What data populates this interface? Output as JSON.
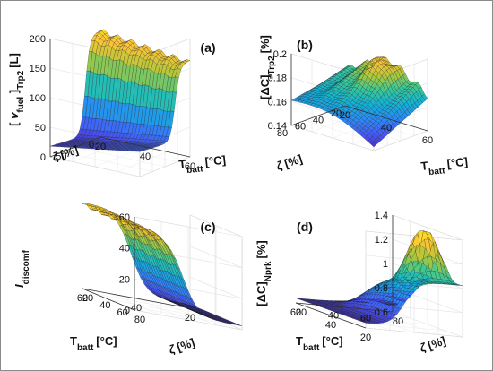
{
  "chart_data": [
    {
      "type": "surface",
      "panel_label": "(a)",
      "zlabel_main": "[",
      "zlabel_var": "v",
      "zlabel_sub": "fuel",
      "zlabel_tail": "]",
      "zlabel_sub2": "Trp2",
      "zlabel_unit": "[L]",
      "xlabel_main": "T",
      "xlabel_sub": "batt",
      "xlabel_unit": "[°C]",
      "ylabel_main": "ζ",
      "ylabel_unit": "[%]",
      "x_ticks": [
        "20",
        "40",
        "60"
      ],
      "y_ticks": [
        "0",
        "50"
      ],
      "z_ticks": [
        "0",
        "50",
        "100",
        "150",
        "200"
      ],
      "xlim": [
        20,
        60
      ],
      "ylim": [
        0,
        80
      ],
      "zlim": [
        0,
        200
      ],
      "x": [
        20,
        25,
        30,
        35,
        40,
        45,
        50,
        55,
        60
      ],
      "y": [
        0,
        10,
        20,
        30,
        40,
        50,
        60,
        70,
        80
      ],
      "z_description": "high plateau (~165-205 L) at low ζ and low T_batt, dropping to ~10-40 L for ζ above ~25%"
    },
    {
      "type": "surface",
      "panel_label": "(b)",
      "zlabel_main": "[ΔC]",
      "zlabel_sub": "Trp2",
      "zlabel_unit": "[%]",
      "xlabel_main": "T",
      "xlabel_sub": "batt",
      "xlabel_unit": "[°C]",
      "ylabel_main": "ζ",
      "ylabel_unit": "[%]",
      "x_ticks": [
        "20",
        "40",
        "60"
      ],
      "y_ticks": [
        "20",
        "40",
        "60",
        "80"
      ],
      "z_ticks": [
        "0.14",
        "0.16",
        "0.18",
        "0.2"
      ],
      "xlim": [
        20,
        60
      ],
      "ylim": [
        10,
        80
      ],
      "zlim": [
        0.14,
        0.2
      ]
    },
    {
      "type": "surface",
      "panel_label": "(c)",
      "zlabel_main": "I",
      "zlabel_sub": "discomf",
      "xlabel_main": "T",
      "xlabel_sub": "batt",
      "xlabel_unit": "[°C]",
      "ylabel_main": "ζ",
      "ylabel_unit": "[%]",
      "x_ticks": [
        "60",
        "40",
        "20"
      ],
      "y_ticks": [
        "20",
        "40",
        "60",
        "80"
      ],
      "z_ticks": [
        "0",
        "20",
        "40",
        "60"
      ],
      "xlim": [
        20,
        60
      ],
      "ylim": [
        10,
        80
      ],
      "zlim": [
        0,
        65
      ]
    },
    {
      "type": "surface",
      "panel_label": "(d)",
      "zlabel_main": "[ΔC]",
      "zlabel_sub": "Nprk",
      "zlabel_unit": "[%]",
      "xlabel_main": "T",
      "xlabel_sub": "batt",
      "xlabel_unit": "[°C]",
      "ylabel_main": "ζ",
      "ylabel_unit": "[%]",
      "x_ticks": [
        "60",
        "40",
        "20"
      ],
      "y_ticks": [
        "20",
        "40",
        "60",
        "80"
      ],
      "z_ticks": [
        "0.6",
        "0.8",
        "1",
        "1.2",
        "1.4"
      ],
      "xlim": [
        20,
        60
      ],
      "ylim": [
        10,
        80
      ],
      "zlim": [
        0.6,
        1.55
      ]
    }
  ]
}
